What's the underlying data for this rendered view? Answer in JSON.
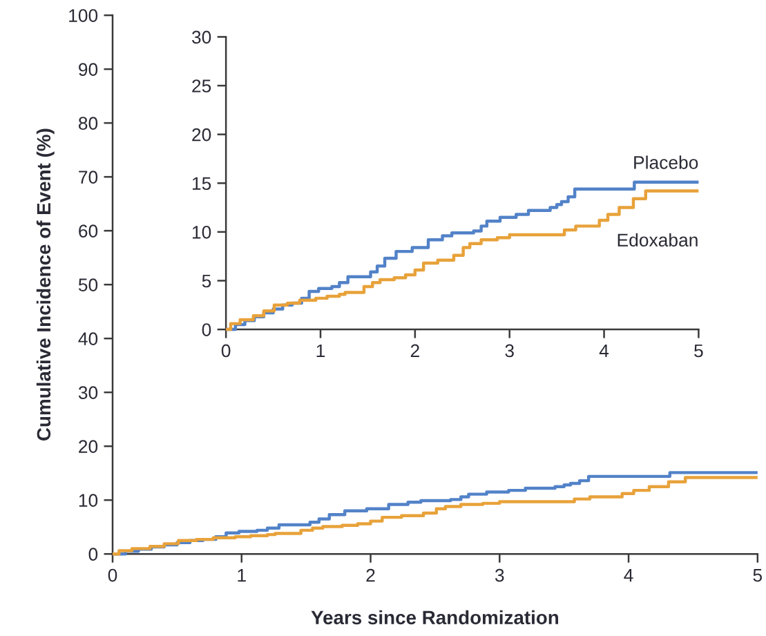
{
  "chart_data": [
    {
      "type": "step",
      "xlabel": "Years since Randomization",
      "ylabel": "Cumulative Incidence of Event (%)",
      "xlim": [
        0,
        5
      ],
      "xticks": [
        0,
        1,
        2,
        3,
        4,
        5
      ],
      "ylim": [
        0,
        100
      ],
      "yticks": [
        0,
        10,
        20,
        30,
        40,
        50,
        60,
        70,
        80,
        90,
        100
      ],
      "grid": false,
      "legend": false,
      "series": [
        {
          "color": "#5282c8",
          "x": [
            0,
            0.1,
            0.2,
            0.3,
            0.4,
            0.5,
            0.6,
            0.7,
            0.8,
            0.88,
            0.98,
            1.12,
            1.2,
            1.29,
            1.53,
            1.6,
            1.68,
            1.8,
            1.97,
            2.14,
            2.29,
            2.39,
            2.62,
            2.7,
            2.76,
            2.9,
            3.07,
            3.2,
            3.43,
            3.5,
            3.55,
            3.62,
            3.69,
            4.32,
            5.0
          ],
          "values": [
            0,
            0.5,
            0.9,
            1.3,
            1.7,
            2.1,
            2.5,
            2.7,
            3.2,
            3.9,
            4.2,
            4.4,
            4.8,
            5.4,
            5.9,
            6.5,
            7.3,
            8.0,
            8.4,
            9.2,
            9.6,
            9.9,
            10.1,
            10.6,
            11.1,
            11.5,
            11.8,
            12.2,
            12.5,
            12.8,
            13.1,
            13.6,
            14.4,
            15.1,
            15.1
          ]
        },
        {
          "color": "#e8a23a",
          "x": [
            0,
            0.05,
            0.15,
            0.29,
            0.4,
            0.51,
            0.65,
            0.78,
            0.95,
            1.07,
            1.2,
            1.26,
            1.46,
            1.55,
            1.63,
            1.78,
            1.9,
            2.0,
            2.09,
            2.24,
            2.41,
            2.51,
            2.58,
            2.7,
            2.87,
            3.0,
            3.58,
            3.7,
            3.95,
            4.04,
            4.16,
            4.31,
            4.44,
            5.0
          ],
          "values": [
            0,
            0.6,
            1.0,
            1.4,
            1.9,
            2.5,
            2.7,
            3.0,
            3.2,
            3.4,
            3.6,
            3.8,
            4.4,
            4.8,
            5.1,
            5.3,
            5.6,
            6.1,
            6.8,
            7.1,
            7.6,
            8.4,
            8.8,
            9.2,
            9.4,
            9.7,
            10.2,
            10.6,
            11.2,
            11.8,
            12.5,
            13.4,
            14.2,
            14.2
          ]
        }
      ]
    },
    {
      "type": "step",
      "xlim": [
        0,
        5
      ],
      "xticks": [
        0,
        1,
        2,
        3,
        4,
        5
      ],
      "ylim": [
        0,
        30
      ],
      "yticks": [
        0,
        5,
        10,
        15,
        20,
        25,
        30
      ],
      "grid": false,
      "legend": false,
      "series": [
        {
          "name": "Placebo",
          "color": "#5282c8",
          "x": [
            0,
            0.1,
            0.2,
            0.3,
            0.4,
            0.5,
            0.6,
            0.7,
            0.8,
            0.88,
            0.98,
            1.12,
            1.2,
            1.29,
            1.53,
            1.6,
            1.68,
            1.8,
            1.97,
            2.14,
            2.29,
            2.39,
            2.62,
            2.7,
            2.76,
            2.9,
            3.07,
            3.2,
            3.43,
            3.5,
            3.55,
            3.62,
            3.69,
            4.32,
            5.0
          ],
          "values": [
            0,
            0.5,
            0.9,
            1.3,
            1.7,
            2.1,
            2.5,
            2.7,
            3.2,
            3.9,
            4.2,
            4.4,
            4.8,
            5.4,
            5.9,
            6.5,
            7.3,
            8.0,
            8.4,
            9.2,
            9.6,
            9.9,
            10.1,
            10.6,
            11.1,
            11.5,
            11.8,
            12.2,
            12.5,
            12.8,
            13.1,
            13.6,
            14.4,
            15.1,
            15.1
          ]
        },
        {
          "name": "Edoxaban",
          "color": "#e8a23a",
          "x": [
            0,
            0.05,
            0.15,
            0.29,
            0.4,
            0.51,
            0.65,
            0.78,
            0.95,
            1.07,
            1.2,
            1.26,
            1.46,
            1.55,
            1.63,
            1.78,
            1.9,
            2.0,
            2.09,
            2.24,
            2.41,
            2.51,
            2.58,
            2.7,
            2.87,
            3.0,
            3.58,
            3.7,
            3.95,
            4.04,
            4.16,
            4.31,
            4.44,
            5.0
          ],
          "values": [
            0,
            0.6,
            1.0,
            1.4,
            1.9,
            2.5,
            2.7,
            3.0,
            3.2,
            3.4,
            3.6,
            3.8,
            4.4,
            4.8,
            5.1,
            5.3,
            5.6,
            6.1,
            6.8,
            7.1,
            7.6,
            8.4,
            8.8,
            9.2,
            9.4,
            9.7,
            10.2,
            10.6,
            11.2,
            11.8,
            12.5,
            13.4,
            14.2,
            14.2
          ]
        }
      ]
    }
  ]
}
